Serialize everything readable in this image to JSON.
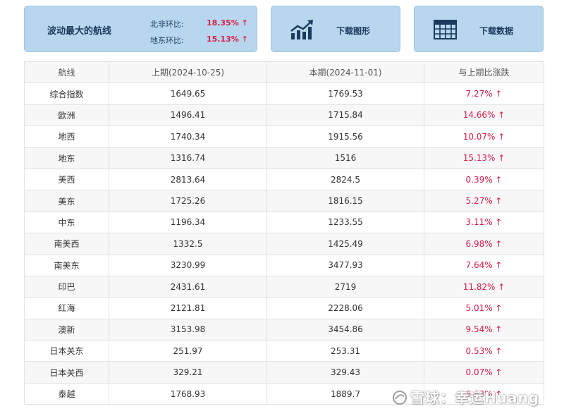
{
  "summary": {
    "title": "波动最大的航线",
    "stats": [
      {
        "label": "北非环比:",
        "value": "18.35%",
        "arrow": "↑"
      },
      {
        "label": "地东环比:",
        "value": "15.13%",
        "arrow": "↑"
      }
    ]
  },
  "buttons": {
    "graph_label": "下载图形",
    "data_label": "下载数据"
  },
  "table": {
    "headers": [
      "航线",
      "上期(2024-10-25)",
      "本期(2024-11-01)",
      "与上期比涨跌"
    ],
    "rows": [
      {
        "route": "综合指数",
        "prev": "1649.65",
        "curr": "1769.53",
        "change": "7.27% ↑"
      },
      {
        "route": "欧洲",
        "prev": "1496.41",
        "curr": "1715.84",
        "change": "14.66% ↑"
      },
      {
        "route": "地西",
        "prev": "1740.34",
        "curr": "1915.56",
        "change": "10.07% ↑"
      },
      {
        "route": "地东",
        "prev": "1316.74",
        "curr": "1516",
        "change": "15.13% ↑"
      },
      {
        "route": "美西",
        "prev": "2813.64",
        "curr": "2824.5",
        "change": "0.39% ↑"
      },
      {
        "route": "美东",
        "prev": "1725.26",
        "curr": "1816.15",
        "change": "5.27% ↑"
      },
      {
        "route": "中东",
        "prev": "1196.34",
        "curr": "1233.55",
        "change": "3.11% ↑"
      },
      {
        "route": "南美西",
        "prev": "1332.5",
        "curr": "1425.49",
        "change": "6.98% ↑"
      },
      {
        "route": "南美东",
        "prev": "3230.99",
        "curr": "3477.93",
        "change": "7.64% ↑"
      },
      {
        "route": "印巴",
        "prev": "2431.61",
        "curr": "2719",
        "change": "11.82% ↑"
      },
      {
        "route": "红海",
        "prev": "2121.81",
        "curr": "2228.06",
        "change": "5.01% ↑"
      },
      {
        "route": "澳新",
        "prev": "3153.98",
        "curr": "3454.86",
        "change": "9.54% ↑"
      },
      {
        "route": "日本关东",
        "prev": "251.97",
        "curr": "253.31",
        "change": "0.53% ↑"
      },
      {
        "route": "日本关西",
        "prev": "329.21",
        "curr": "329.43",
        "change": "0.07% ↑"
      },
      {
        "route": "泰越",
        "prev": "1768.93",
        "curr": "1889.7",
        "change": "6.83% ↑"
      }
    ]
  },
  "watermark": {
    "text": "雪球：幸运Huang",
    "icon": "snowball-logo-icon"
  },
  "colors": {
    "card_bg": "#b8d7ee",
    "card_text": "#1b3a5c",
    "up_red": "#d81e4a",
    "row_stripe": "#f7f7f7"
  }
}
